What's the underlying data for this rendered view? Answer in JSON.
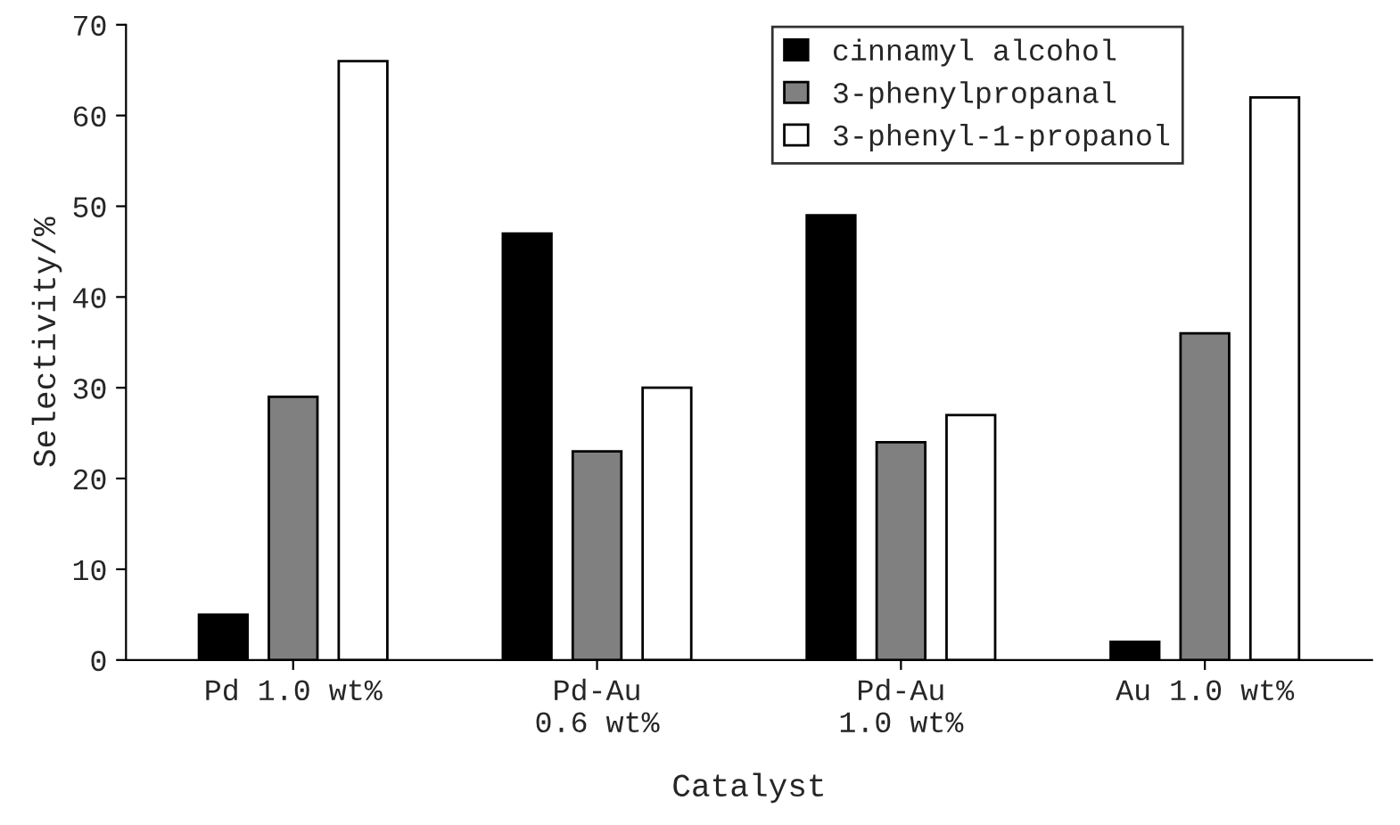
{
  "chart_data": {
    "type": "bar",
    "xlabel": "Catalyst",
    "ylabel": "Selectivity/%",
    "categories": [
      "Pd 1.0 wt%",
      "Pd-Au\n0.6 wt%",
      "Pd-Au\n1.0 wt%",
      "Au 1.0 wt%"
    ],
    "series": [
      {
        "name": "cinnamyl alcohol",
        "color": "#000000",
        "values": [
          5,
          47,
          49,
          2
        ]
      },
      {
        "name": "3-phenylpropanal",
        "color": "#808080",
        "values": [
          29,
          23,
          24,
          36
        ]
      },
      {
        "name": "3-phenyl-1-propanol",
        "color": "#ffffff",
        "values": [
          66,
          30,
          27,
          62
        ]
      }
    ],
    "ylim": [
      0,
      70
    ],
    "yticks": [
      0,
      10,
      20,
      30,
      40,
      50,
      60,
      70
    ],
    "grid": false,
    "legend": "top right"
  }
}
